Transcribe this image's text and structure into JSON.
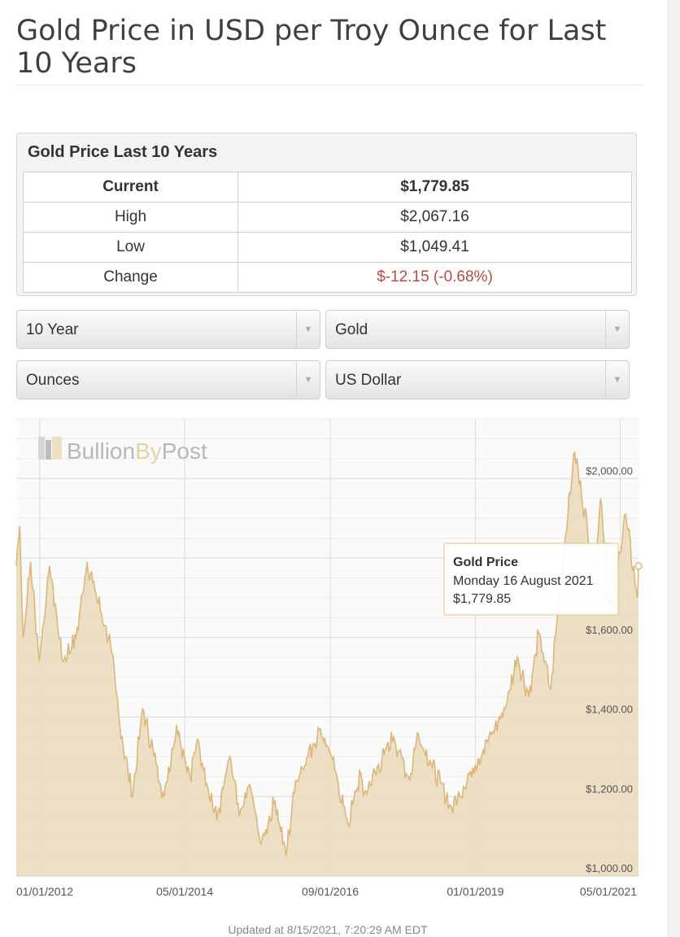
{
  "page": {
    "title": "Gold Price in USD per Troy Ounce for Last 10 Years",
    "updated": "Updated at 8/15/2021, 7:20:29 AM EDT"
  },
  "summary": {
    "title": "Gold Price Last 10 Years",
    "rows": [
      {
        "label": "Current",
        "value": "$1,779.85"
      },
      {
        "label": "High",
        "value": "$2,067.16"
      },
      {
        "label": "Low",
        "value": "$1,049.41"
      },
      {
        "label": "Change",
        "value": "$-12.15 (-0.68%)"
      }
    ]
  },
  "selects": {
    "period": "10 Year",
    "metal": "Gold",
    "unit": "Ounces",
    "currency": "US Dollar"
  },
  "watermark": {
    "part1": "Bullion",
    "part2": "By",
    "part3": "Post"
  },
  "tooltip": {
    "title": "Gold Price",
    "date": "Monday 16 August 2021",
    "value": "$1,779.85"
  },
  "chart_data": {
    "type": "area",
    "xlabel": "",
    "ylabel": "",
    "x_ticks": [
      "01/01/2012",
      "05/01/2014",
      "09/01/2016",
      "01/01/2019",
      "05/01/2021"
    ],
    "y_ticks": [
      "$1,000.00",
      "$1,200.00",
      "$1,400.00",
      "$1,600.00",
      "$2,000.00"
    ],
    "y_tick_values": [
      1000,
      1200,
      1400,
      1600,
      2000
    ],
    "ylim": [
      1000,
      2150
    ],
    "xlim": [
      "2011-08-16",
      "2021-08-16"
    ],
    "grid": true,
    "colors": {
      "fill": "#ecdcbf",
      "line": "#dcb77a",
      "negative": "#b94a48"
    },
    "series": [
      {
        "values": [
          [
            "2011-08-16",
            1780
          ],
          [
            "2011-09-05",
            1880
          ],
          [
            "2011-09-26",
            1600
          ],
          [
            "2011-11-08",
            1790
          ],
          [
            "2011-12-29",
            1540
          ],
          [
            "2012-02-28",
            1780
          ],
          [
            "2012-05-15",
            1540
          ],
          [
            "2012-08-01",
            1600
          ],
          [
            "2012-10-05",
            1790
          ],
          [
            "2012-12-28",
            1660
          ],
          [
            "2013-02-20",
            1580
          ],
          [
            "2013-04-15",
            1380
          ],
          [
            "2013-06-28",
            1200
          ],
          [
            "2013-08-27",
            1420
          ],
          [
            "2013-12-31",
            1200
          ],
          [
            "2014-03-14",
            1380
          ],
          [
            "2014-06-02",
            1250
          ],
          [
            "2014-07-10",
            1340
          ],
          [
            "2014-11-06",
            1140
          ],
          [
            "2015-01-22",
            1300
          ],
          [
            "2015-03-17",
            1150
          ],
          [
            "2015-05-18",
            1230
          ],
          [
            "2015-07-24",
            1080
          ],
          [
            "2015-10-14",
            1190
          ],
          [
            "2015-12-17",
            1050
          ],
          [
            "2016-02-11",
            1240
          ],
          [
            "2016-07-06",
            1370
          ],
          [
            "2016-09-01",
            1310
          ],
          [
            "2016-12-15",
            1130
          ],
          [
            "2017-02-27",
            1260
          ],
          [
            "2017-03-15",
            1200
          ],
          [
            "2017-09-08",
            1350
          ],
          [
            "2017-12-12",
            1240
          ],
          [
            "2018-01-25",
            1360
          ],
          [
            "2018-08-16",
            1170
          ],
          [
            "2018-12-31",
            1280
          ],
          [
            "2019-06-25",
            1420
          ],
          [
            "2019-09-04",
            1550
          ],
          [
            "2019-11-12",
            1450
          ],
          [
            "2020-01-08",
            1610
          ],
          [
            "2020-03-19",
            1470
          ],
          [
            "2020-05-18",
            1760
          ],
          [
            "2020-08-06",
            2067.16
          ],
          [
            "2020-11-30",
            1770
          ],
          [
            "2021-01-05",
            1950
          ],
          [
            "2021-03-08",
            1680
          ],
          [
            "2021-06-01",
            1910
          ],
          [
            "2021-08-09",
            1700
          ],
          [
            "2021-08-16",
            1779.85
          ]
        ]
      }
    ]
  }
}
